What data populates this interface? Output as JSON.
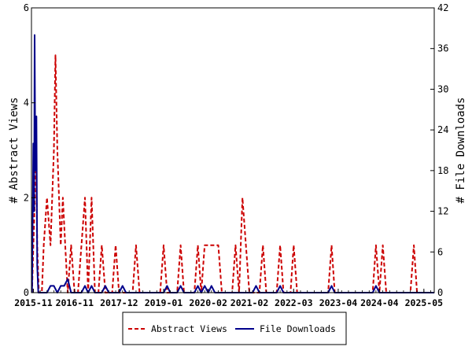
{
  "chart_data": {
    "type": "line",
    "title": "",
    "ylabel": "# Abstract Views",
    "y2label": "# File Downloads",
    "ylim": [
      0,
      6
    ],
    "y2lim": [
      0,
      42
    ],
    "yticks": [
      0,
      2,
      4,
      6
    ],
    "y2ticks": [
      0,
      6,
      12,
      18,
      24,
      30,
      36,
      42
    ],
    "grid": false,
    "legend_position": "bottom",
    "x_ticks": [
      {
        "label": "2015-11",
        "t": "2015-11"
      },
      {
        "label": "2016-11",
        "t": "2016-11"
      },
      {
        "label": "2017-12",
        "t": "2017-12"
      },
      {
        "label": "2019-01",
        "t": "2019-01"
      },
      {
        "label": "2020-02",
        "t": "2020-02"
      },
      {
        "label": "2021-02",
        "t": "2021-02"
      },
      {
        "label": "2022-03",
        "t": "2022-03"
      },
      {
        "label": "2023-04",
        "t": "2023-04"
      },
      {
        "label": "2024-04",
        "t": "2024-04"
      },
      {
        "label": "2025-05",
        "t": "2025-05"
      }
    ],
    "series": [
      {
        "name": "Abstract Views",
        "axis": "left",
        "color": "#cc0000",
        "dash": "dashed",
        "points": [
          [
            "2015-10-20",
            0
          ],
          [
            "2015-11-01",
            1
          ],
          [
            "2015-11-15",
            2
          ],
          [
            "2015-11-25",
            3
          ],
          [
            "2015-12-05",
            1
          ],
          [
            "2015-12-20",
            0
          ],
          [
            "2016-01-15",
            0
          ],
          [
            "2016-02-01",
            1
          ],
          [
            "2016-03-01",
            2
          ],
          [
            "2016-04-01",
            1
          ],
          [
            "2016-05-01",
            3
          ],
          [
            "2016-05-15",
            5
          ],
          [
            "2016-06-01",
            3
          ],
          [
            "2016-07-01",
            1
          ],
          [
            "2016-07-20",
            2
          ],
          [
            "2016-08-10",
            1
          ],
          [
            "2016-09-01",
            0
          ],
          [
            "2016-10-01",
            1
          ],
          [
            "2016-11-01",
            0
          ],
          [
            "2016-12-01",
            0
          ],
          [
            "2017-02-01",
            2
          ],
          [
            "2017-03-01",
            0
          ],
          [
            "2017-04-01",
            2
          ],
          [
            "2017-05-01",
            0
          ],
          [
            "2017-06-01",
            0
          ],
          [
            "2017-07-01",
            1
          ],
          [
            "2017-08-01",
            0
          ],
          [
            "2017-10-01",
            0
          ],
          [
            "2017-11-01",
            1
          ],
          [
            "2017-12-01",
            0
          ],
          [
            "2018-04-01",
            0
          ],
          [
            "2018-05-01",
            1
          ],
          [
            "2018-06-01",
            0
          ],
          [
            "2018-12-01",
            0
          ],
          [
            "2019-01-01",
            1
          ],
          [
            "2019-02-01",
            0
          ],
          [
            "2019-05-01",
            0
          ],
          [
            "2019-06-01",
            1
          ],
          [
            "2019-07-01",
            0
          ],
          [
            "2019-10-01",
            0
          ],
          [
            "2019-11-01",
            1
          ],
          [
            "2019-12-01",
            0
          ],
          [
            "2020-01-01",
            1
          ],
          [
            "2020-05-01",
            1
          ],
          [
            "2020-06-01",
            0
          ],
          [
            "2020-09-01",
            0
          ],
          [
            "2020-10-01",
            1
          ],
          [
            "2020-11-01",
            0
          ],
          [
            "2020-12-01",
            2
          ],
          [
            "2021-01-01",
            1
          ],
          [
            "2021-02-01",
            0
          ],
          [
            "2021-05-01",
            0
          ],
          [
            "2021-06-01",
            1
          ],
          [
            "2021-07-01",
            0
          ],
          [
            "2021-10-01",
            0
          ],
          [
            "2021-11-01",
            1
          ],
          [
            "2021-12-01",
            0
          ],
          [
            "2022-02-01",
            0
          ],
          [
            "2022-03-01",
            1
          ],
          [
            "2022-04-01",
            0
          ],
          [
            "2023-01-01",
            0
          ],
          [
            "2023-02-01",
            1
          ],
          [
            "2023-03-01",
            0
          ],
          [
            "2024-02-01",
            0
          ],
          [
            "2024-03-01",
            1
          ],
          [
            "2024-04-01",
            0
          ],
          [
            "2024-05-01",
            1
          ],
          [
            "2024-06-01",
            0
          ],
          [
            "2025-01-01",
            0
          ],
          [
            "2025-02-01",
            1
          ],
          [
            "2025-03-01",
            0
          ],
          [
            "2025-08-01",
            0
          ]
        ]
      },
      {
        "name": "File Downloads",
        "axis": "right",
        "color": "#00008b",
        "dash": "solid",
        "points": [
          [
            "2015-10-20",
            0
          ],
          [
            "2015-11-01",
            22
          ],
          [
            "2015-11-08",
            12
          ],
          [
            "2015-11-12",
            38
          ],
          [
            "2015-11-18",
            18
          ],
          [
            "2015-11-28",
            26
          ],
          [
            "2015-12-05",
            4
          ],
          [
            "2015-12-15",
            0
          ],
          [
            "2016-03-01",
            0
          ],
          [
            "2016-04-01",
            1
          ],
          [
            "2016-05-01",
            1
          ],
          [
            "2016-06-01",
            0
          ],
          [
            "2016-07-01",
            1
          ],
          [
            "2016-08-01",
            1
          ],
          [
            "2016-09-01",
            2
          ],
          [
            "2016-10-01",
            0
          ],
          [
            "2017-01-01",
            0
          ],
          [
            "2017-02-01",
            1
          ],
          [
            "2017-03-01",
            0
          ],
          [
            "2017-04-01",
            1
          ],
          [
            "2017-05-01",
            0
          ],
          [
            "2017-07-01",
            0
          ],
          [
            "2017-08-01",
            1
          ],
          [
            "2017-09-01",
            0
          ],
          [
            "2017-12-01",
            0
          ],
          [
            "2018-01-01",
            1
          ],
          [
            "2018-02-01",
            0
          ],
          [
            "2019-01-01",
            0
          ],
          [
            "2019-02-01",
            1
          ],
          [
            "2019-03-01",
            0
          ],
          [
            "2019-05-01",
            0
          ],
          [
            "2019-06-01",
            1
          ],
          [
            "2019-07-01",
            0
          ],
          [
            "2019-10-01",
            0
          ],
          [
            "2019-11-01",
            1
          ],
          [
            "2019-12-01",
            0
          ],
          [
            "2020-01-01",
            1
          ],
          [
            "2020-02-01",
            0
          ],
          [
            "2020-03-01",
            1
          ],
          [
            "2020-04-01",
            0
          ],
          [
            "2021-03-01",
            0
          ],
          [
            "2021-04-01",
            1
          ],
          [
            "2021-05-01",
            0
          ],
          [
            "2021-10-01",
            0
          ],
          [
            "2021-11-01",
            1
          ],
          [
            "2021-12-01",
            0
          ],
          [
            "2023-01-01",
            0
          ],
          [
            "2023-02-01",
            1
          ],
          [
            "2023-03-01",
            0
          ],
          [
            "2024-02-01",
            0
          ],
          [
            "2024-03-01",
            1
          ],
          [
            "2024-04-01",
            0
          ],
          [
            "2025-08-01",
            0
          ]
        ]
      }
    ]
  }
}
